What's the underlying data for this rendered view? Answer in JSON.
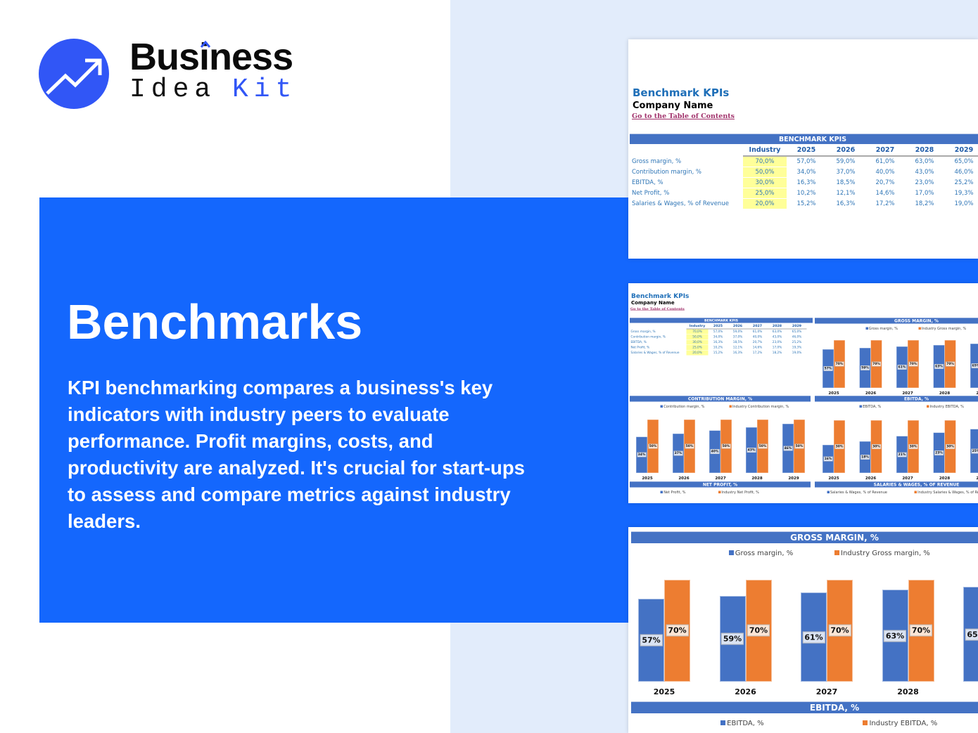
{
  "logo": {
    "word1": "Business",
    "word2": "Idea",
    "word3": "Kit"
  },
  "hero": {
    "title": "Benchmarks",
    "description": "KPI benchmarking compares a business's key indicators with industry peers to evaluate performance. Profit margins, costs, and productivity are analyzed. It's crucial for start-ups to assess and compare metrics against industry leaders."
  },
  "sheet": {
    "title": "Benchmark KPIs",
    "company": "Company Name",
    "toc_link": "Go to the Table of Contents",
    "table": {
      "title": "BENCHMARK KPIS",
      "columns": [
        "Industry",
        "2025",
        "2026",
        "2027",
        "2028",
        "2029"
      ],
      "rows": [
        {
          "label": "Gross margin, %",
          "industry": "70,0%",
          "values": [
            "57,0%",
            "59,0%",
            "61,0%",
            "63,0%",
            "65,0%"
          ]
        },
        {
          "label": "Contribution margin, %",
          "industry": "50,0%",
          "values": [
            "34,0%",
            "37,0%",
            "40,0%",
            "43,0%",
            "46,0%"
          ]
        },
        {
          "label": "EBITDA, %",
          "industry": "30,0%",
          "values": [
            "16,3%",
            "18,5%",
            "20,7%",
            "23,0%",
            "25,2%"
          ]
        },
        {
          "label": "Net Profit, %",
          "industry": "25,0%",
          "values": [
            "10,2%",
            "12,1%",
            "14,6%",
            "17,0%",
            "19,3%"
          ]
        },
        {
          "label": "Salaries & Wages, % of Revenue",
          "industry": "20,0%",
          "values": [
            "15,2%",
            "16,3%",
            "17,2%",
            "18,2%",
            "19,0%"
          ]
        }
      ]
    }
  },
  "chart_data": [
    {
      "type": "bar",
      "title": "GROSS MARGIN, %",
      "categories": [
        "2025",
        "2026",
        "2027",
        "2028",
        "2029"
      ],
      "ylim": [
        0,
        80
      ],
      "series": [
        {
          "name": "Gross margin, %",
          "values": [
            57,
            59,
            61,
            63,
            65
          ]
        },
        {
          "name": "Industry Gross margin, %",
          "values": [
            70,
            70,
            70,
            70,
            70
          ]
        }
      ]
    },
    {
      "type": "bar",
      "title": "CONTRIBUTION MARGIN, %",
      "categories": [
        "2025",
        "2026",
        "2027",
        "2028",
        "2029"
      ],
      "ylim": [
        0,
        60
      ],
      "series": [
        {
          "name": "Contribution margin, %",
          "values": [
            34,
            37,
            40,
            43,
            46
          ]
        },
        {
          "name": "Industry Contribution margin, %",
          "values": [
            50,
            50,
            50,
            50,
            50
          ]
        }
      ]
    },
    {
      "type": "bar",
      "title": "EBITDA, %",
      "categories": [
        "2025",
        "2026",
        "2027",
        "2028",
        "2029"
      ],
      "ylim": [
        0,
        35
      ],
      "series": [
        {
          "name": "EBITDA, %",
          "values": [
            16,
            18,
            21,
            23,
            25
          ]
        },
        {
          "name": "Industry EBITDA, %",
          "values": [
            30,
            30,
            30,
            30,
            30
          ]
        }
      ]
    },
    {
      "type": "bar",
      "title": "NET PROFIT, %",
      "series": [
        {
          "name": "Net Profit, %"
        },
        {
          "name": "Industry Net Profit, %"
        }
      ]
    },
    {
      "type": "bar",
      "title": "SALARIES & WAGES, % OF REVENUE",
      "series": [
        {
          "name": "Salaries & Wages, % of Revenue"
        },
        {
          "name": "Industry Salaries & Wages, % of Revenue"
        }
      ]
    }
  ],
  "colors": {
    "brand": "#3156f6",
    "panel": "#1467fd",
    "series": "#4472c4",
    "industry": "#ed7d31",
    "highlight": "#ffff99"
  }
}
